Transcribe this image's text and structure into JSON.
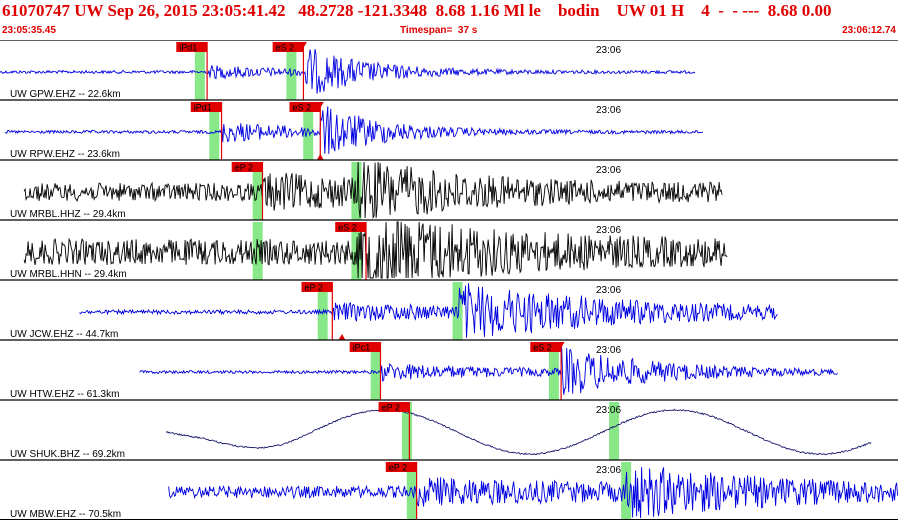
{
  "header": {
    "title": "61070747 UW Sep 26, 2015 23:05:41.42   48.2728 -121.3348  8.68 1.16 Ml le    bodin    UW 01 H    4  -  - ---  8.68 0.00",
    "start_time": "23:05:35.45",
    "timespan": "Timespan=  37 s",
    "end_time": "23:06:12.74"
  },
  "colors": {
    "header_text": "#e00000",
    "trace_blue": "#0000e0",
    "trace_black": "#000000",
    "trace_navy": "#1a1a6e",
    "pick_flag": "#e00000",
    "pick_window": "#88e888",
    "panel_border": "#000000"
  },
  "traces": [
    {
      "label": "UW GPW.EHZ -- 22.6km",
      "time_tick": "23:06",
      "color": "blue",
      "picks": [
        {
          "label": "iPd1",
          "t": 8.6
        },
        {
          "label": "eS 2",
          "t": 12.6,
          "marker": "down"
        }
      ],
      "windows": [
        8.3,
        12.1
      ]
    },
    {
      "label": "UW RPW.EHZ -- 23.6km",
      "time_tick": "23:06",
      "color": "blue",
      "picks": [
        {
          "label": "iPd1",
          "t": 9.2
        },
        {
          "label": "eS 2",
          "t": 13.3,
          "marker": "down"
        }
      ],
      "windows": [
        8.9,
        12.8
      ]
    },
    {
      "label": "UW MRBL.HHZ -- 29.4km",
      "time_tick": "23:06",
      "color": "black",
      "picks": [
        {
          "label": "eP 2",
          "t": 10.9
        }
      ],
      "windows": [
        10.7,
        14.8
      ]
    },
    {
      "label": "UW MRBL.HHN -- 29.4km",
      "time_tick": "23:06",
      "color": "black",
      "picks": [
        {
          "label": "eS 2",
          "t": 15.2
        }
      ],
      "windows": [
        10.7,
        14.8
      ]
    },
    {
      "label": "UW JCW.EHZ -- 44.7km",
      "time_tick": "23:06",
      "color": "blue",
      "picks": [
        {
          "label": "eP 2",
          "t": 13.8
        }
      ],
      "windows": [
        13.4,
        19.0
      ]
    },
    {
      "label": "UW HTW.EHZ -- 61.3km",
      "time_tick": "23:06",
      "color": "blue",
      "picks": [
        {
          "label": "iPc1",
          "t": 15.8
        },
        {
          "label": "eS 2",
          "t": 23.3,
          "marker": "down"
        }
      ],
      "windows": [
        15.6,
        23.0
      ]
    },
    {
      "label": "UW SHUK.BHZ -- 69.2km",
      "time_tick": "23:06",
      "color": "navy",
      "picks": [
        {
          "label": "eP 2",
          "t": 17.0
        }
      ],
      "windows": [
        16.9,
        25.5
      ]
    },
    {
      "label": "UW MBW.EHZ -- 70.5km",
      "time_tick": "23:06",
      "color": "blue",
      "picks": [
        {
          "label": "eP 2",
          "t": 17.3
        }
      ],
      "windows": [
        17.1,
        26.0
      ]
    }
  ]
}
